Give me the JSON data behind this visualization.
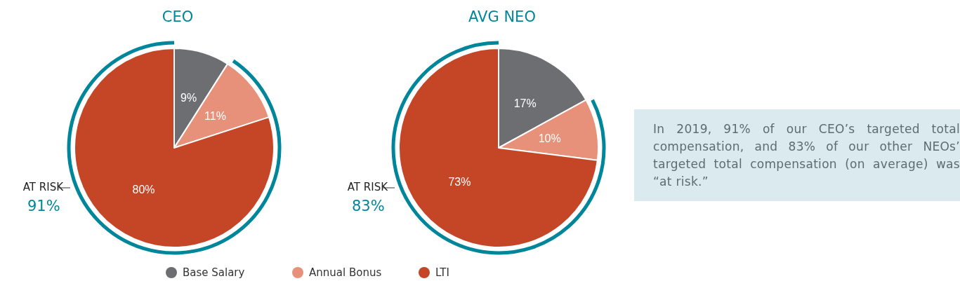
{
  "chart_data": [
    {
      "type": "pie",
      "title": "CEO",
      "categories": [
        "Base Salary",
        "Annual Bonus",
        "LTI"
      ],
      "values": [
        9,
        11,
        80
      ],
      "value_labels": [
        "9%",
        "11%",
        "80%"
      ],
      "colors": [
        "#6d6e71",
        "#e8917a",
        "#c54627"
      ],
      "legend": "bottom",
      "annotations": [
        "AT RISK",
        "91%"
      ]
    },
    {
      "type": "pie",
      "title": "AVG NEO",
      "categories": [
        null,
        null,
        null
      ],
      "values": [
        17,
        10,
        73
      ],
      "value_labels": [
        "17%",
        "10%",
        "73%"
      ],
      "colors": [
        "#6d6e71",
        "#e8917a",
        "#c54627"
      ],
      "annotations": [
        "AT RISK",
        "83%"
      ]
    },
    {
      "type": "other",
      "annotations": [
        "In 2019, 91% of our CEO’s targeted total compensation, and 83% of our other NEOs’ targeted total compensation (on average) was “at risk.”"
      ]
    }
  ]
}
